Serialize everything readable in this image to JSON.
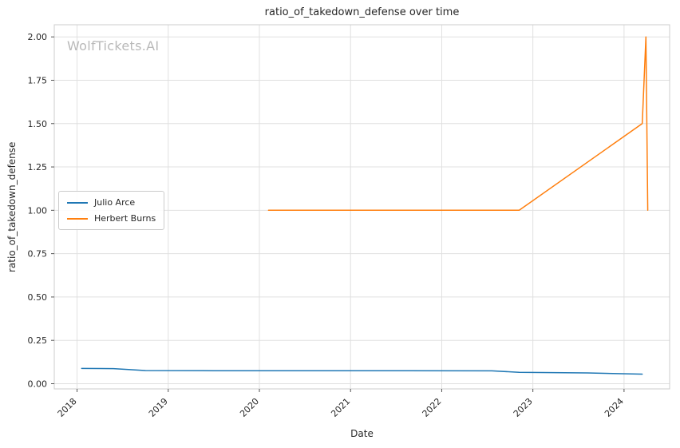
{
  "watermark": "WolfTickets.AI",
  "chart_data": {
    "type": "line",
    "title": "ratio_of_takedown_defense over time",
    "xlabel": "Date",
    "ylabel": "ratio_of_takedown_defense",
    "grid": true,
    "legend_position": "center-left",
    "xlim": [
      2017.75,
      2024.5
    ],
    "ylim": [
      -0.03,
      2.07
    ],
    "x_tick_values": [
      2018,
      2019,
      2020,
      2021,
      2022,
      2023,
      2024
    ],
    "x_tick_labels": [
      "2018",
      "2019",
      "2020",
      "2021",
      "2022",
      "2023",
      "2024"
    ],
    "y_tick_values": [
      0.0,
      0.25,
      0.5,
      0.75,
      1.0,
      1.25,
      1.5,
      1.75,
      2.0
    ],
    "y_tick_labels": [
      "0.00",
      "0.25",
      "0.50",
      "0.75",
      "1.00",
      "1.25",
      "1.50",
      "1.75",
      "2.00"
    ],
    "series": [
      {
        "name": "Julio Arce",
        "color": "#1f77b4",
        "points": [
          [
            2018.05,
            0.088
          ],
          [
            2018.4,
            0.087
          ],
          [
            2018.75,
            0.076
          ],
          [
            2019.5,
            0.075
          ],
          [
            2020.5,
            0.075
          ],
          [
            2021.5,
            0.075
          ],
          [
            2022.55,
            0.074
          ],
          [
            2022.85,
            0.066
          ],
          [
            2023.6,
            0.062
          ],
          [
            2024.2,
            0.055
          ]
        ]
      },
      {
        "name": "Herbert Burns",
        "color": "#ff7f0e",
        "points": [
          [
            2020.1,
            1.0
          ],
          [
            2021.0,
            1.0
          ],
          [
            2022.0,
            1.0
          ],
          [
            2022.85,
            1.0
          ],
          [
            2024.2,
            1.5
          ],
          [
            2024.24,
            2.0
          ],
          [
            2024.26,
            1.0
          ]
        ]
      }
    ]
  }
}
